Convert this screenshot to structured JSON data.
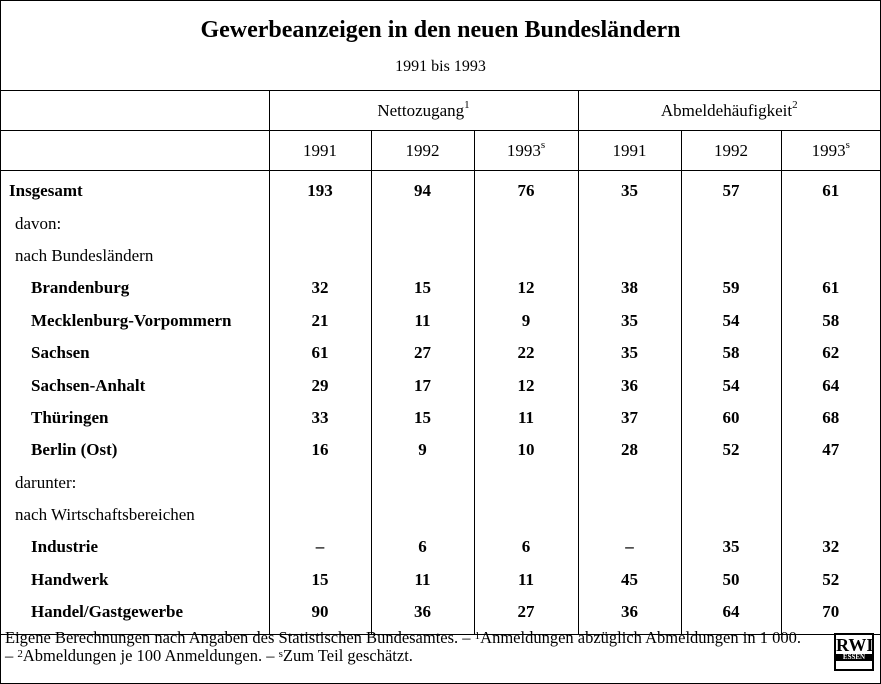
{
  "title": "Gewerbeanzeigen in den neuen Bundesländern",
  "subtitle": "1991 bis 1993",
  "groups": [
    {
      "label": "Nettozugang",
      "sup": "1"
    },
    {
      "label": "Abmeldehäufigkeit",
      "sup": "2"
    }
  ],
  "years": [
    {
      "label": "1991"
    },
    {
      "label": "1992"
    },
    {
      "label": "1993",
      "sup": "s"
    },
    {
      "label": "1991"
    },
    {
      "label": "1992"
    },
    {
      "label": "1993",
      "sup": "s"
    }
  ],
  "rows": [
    {
      "label": "Insgesamt",
      "level": 0,
      "values": [
        193,
        94,
        76,
        35,
        57,
        61
      ]
    },
    {
      "label": "davon:",
      "level": 1,
      "values": []
    },
    {
      "label": "nach Bundesländern",
      "level": 1,
      "values": []
    },
    {
      "label": "Brandenburg",
      "level": 2,
      "values": [
        32,
        15,
        12,
        38,
        59,
        61
      ]
    },
    {
      "label": "Mecklenburg-Vorpommern",
      "level": 2,
      "values": [
        21,
        11,
        9,
        35,
        54,
        58
      ]
    },
    {
      "label": "Sachsen",
      "level": 2,
      "values": [
        61,
        27,
        22,
        35,
        58,
        62
      ]
    },
    {
      "label": "Sachsen-Anhalt",
      "level": 2,
      "values": [
        29,
        17,
        12,
        36,
        54,
        64
      ]
    },
    {
      "label": "Thüringen",
      "level": 2,
      "values": [
        33,
        15,
        11,
        37,
        60,
        68
      ]
    },
    {
      "label": "Berlin (Ost)",
      "level": 2,
      "values": [
        16,
        9,
        10,
        28,
        52,
        47
      ]
    },
    {
      "label": "darunter:",
      "level": 1,
      "values": []
    },
    {
      "label": "nach Wirtschaftsbereichen",
      "level": 1,
      "values": []
    },
    {
      "label": "Industrie",
      "level": 2,
      "values": [
        "–",
        6,
        6,
        "–",
        35,
        32
      ]
    },
    {
      "label": "Handwerk",
      "level": 2,
      "values": [
        15,
        11,
        11,
        45,
        50,
        52
      ]
    },
    {
      "label": "Handel/Gastgewerbe",
      "level": 2,
      "values": [
        90,
        36,
        27,
        36,
        64,
        70
      ]
    }
  ],
  "footnote": [
    {
      "text": "Eigene Berechnungen nach Angaben des Statistischen Bundesamtes. – "
    },
    {
      "text": "1",
      "sup": true
    },
    {
      "text": "Anmeldungen abzüglich Abmeldungen in 1 000. – "
    },
    {
      "text": "2",
      "sup": true
    },
    {
      "text": "Abmeldungen je 100 Anmeldungen. – "
    },
    {
      "text": "s",
      "sup": true
    },
    {
      "text": "Zum Teil geschätzt."
    }
  ],
  "logo": {
    "main": "RWI",
    "sub": "ESSEN"
  }
}
